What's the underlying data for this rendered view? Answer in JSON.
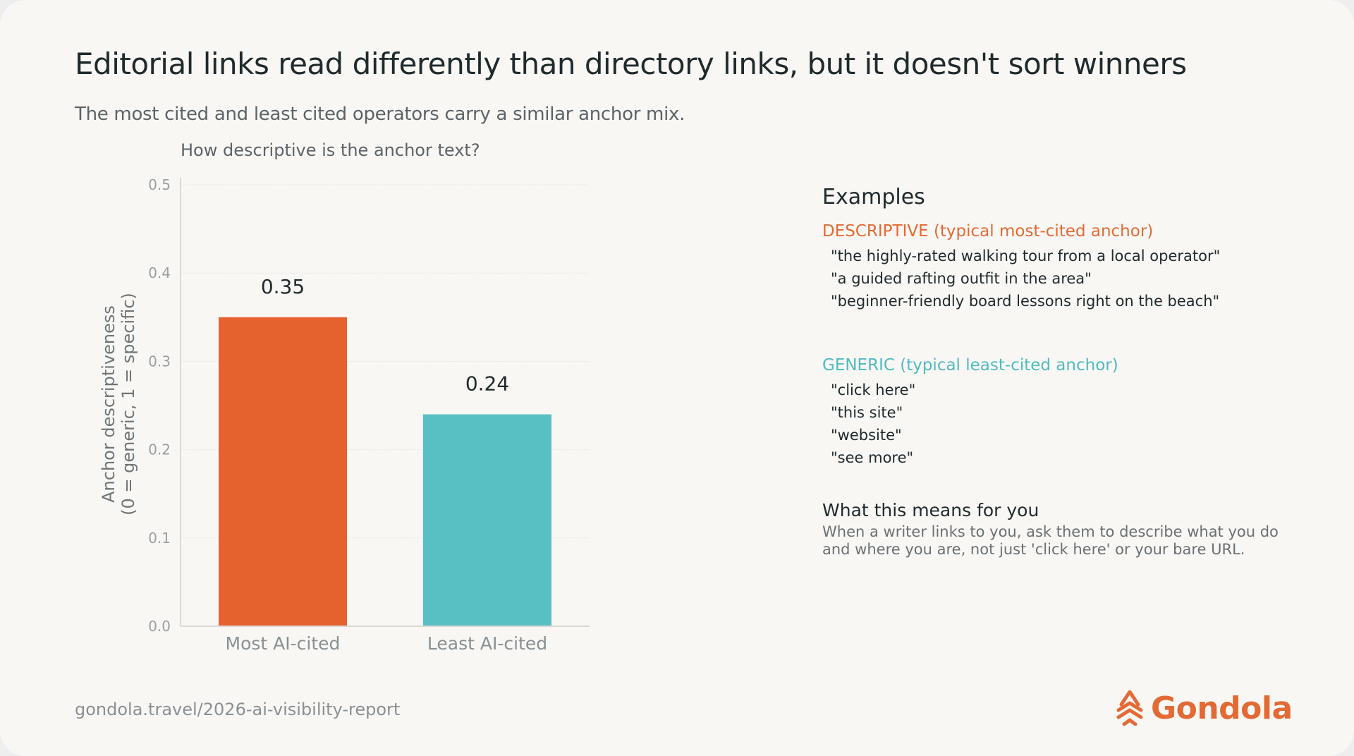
{
  "header": {
    "title": "Editorial links read differently than directory links, but it doesn't sort winners",
    "subtitle": "The most cited and least cited operators carry a similar anchor mix."
  },
  "chart_data": {
    "type": "bar",
    "title": "How descriptive is the anchor text?",
    "ylabel_line1": "Anchor descriptiveness",
    "ylabel_line2": "(0 = generic, 1 = specific)",
    "categories": [
      "Most AI-cited",
      "Least AI-cited"
    ],
    "values": [
      0.35,
      0.24
    ],
    "value_labels": [
      "0.35",
      "0.24"
    ],
    "yticks": [
      "0.0",
      "0.1",
      "0.2",
      "0.3",
      "0.4",
      "0.5"
    ],
    "ylim": [
      0,
      0.5
    ],
    "grid": true,
    "colors": [
      "#e5622f",
      "#58c0c3"
    ]
  },
  "examples": {
    "heading": "Examples",
    "descriptive": {
      "heading": "DESCRIPTIVE (typical most-cited anchor)",
      "items": [
        "\"the highly-rated walking tour from a local operator\"",
        "\"a guided rafting outfit in the area\"",
        "\"beginner-friendly board lessons right on the beach\""
      ]
    },
    "generic": {
      "heading": "GENERIC (typical least-cited anchor)",
      "items": [
        "\"click here\"",
        "\"this site\"",
        "\"website\"",
        "\"see more\""
      ]
    },
    "means": {
      "heading": "What this means for you",
      "body": "When a writer links to you, ask them to describe what you do and where you are, not just 'click here' or your bare URL."
    }
  },
  "footer": {
    "url": "gondola.travel/2026-ai-visibility-report",
    "brand": "Gondola",
    "brand_color": "#e36a35"
  }
}
